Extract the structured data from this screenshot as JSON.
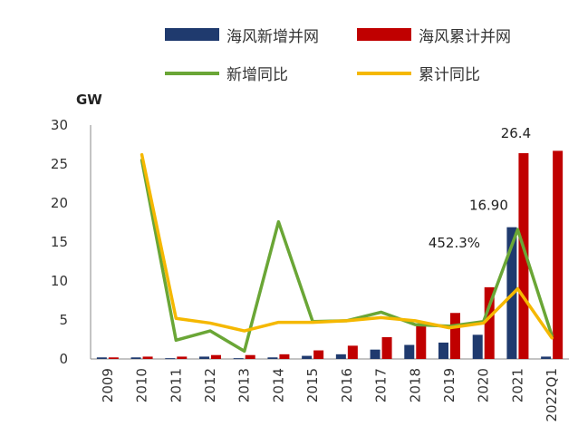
{
  "chart_data": {
    "type": "bar",
    "ylabel": "GW",
    "ylim": [
      0,
      30
    ],
    "yticks": [
      0,
      5,
      10,
      15,
      20,
      25,
      30
    ],
    "categories": [
      "2009",
      "2010",
      "2011",
      "2012",
      "2013",
      "2014",
      "2015",
      "2016",
      "2017",
      "2018",
      "2019",
      "2020",
      "2021",
      "2022Q1"
    ],
    "series": [
      {
        "name": "海风新增并网",
        "type": "bar",
        "color": "#1f3a6e",
        "values": [
          0.2,
          0.2,
          0.1,
          0.3,
          0.1,
          0.2,
          0.4,
          0.6,
          1.2,
          1.8,
          2.1,
          3.1,
          16.9,
          0.3
        ]
      },
      {
        "name": "海风累计并网",
        "type": "bar",
        "color": "#c00000",
        "values": [
          0.2,
          0.3,
          0.3,
          0.5,
          0.5,
          0.6,
          1.1,
          1.7,
          2.8,
          4.5,
          5.9,
          9.2,
          26.4,
          26.7
        ]
      },
      {
        "name": "新增同比",
        "type": "line",
        "color": "#6aa636",
        "values": [
          null,
          25.5,
          2.4,
          3.6,
          1.0,
          17.6,
          4.8,
          4.9,
          6.0,
          4.4,
          4.2,
          4.8,
          16.6,
          3.0
        ]
      },
      {
        "name": "累计同比",
        "type": "line",
        "color": "#f5b800",
        "values": [
          null,
          26.2,
          5.2,
          4.6,
          3.6,
          4.7,
          4.7,
          4.9,
          5.3,
          4.9,
          4.0,
          4.6,
          9.0,
          2.7
        ]
      }
    ],
    "annotations": [
      {
        "text": "26.4",
        "category": "2021",
        "y": 26.4
      },
      {
        "text": "16.90",
        "category": "2021",
        "y": 16.9
      },
      {
        "text": "452.3%",
        "category": "2021",
        "y": 16.6
      }
    ]
  }
}
